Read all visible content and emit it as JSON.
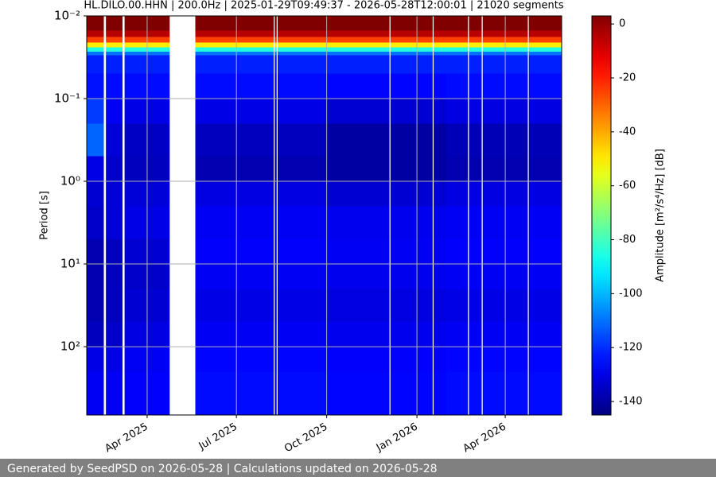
{
  "chart_data": {
    "type": "spectrogram",
    "title": "HL.DILO.00.HHN | 200.0Hz | 2025-01-29T09:49:37 - 2026-05-28T12:00:01 | 21020 segments",
    "y_label": "Period [s]",
    "colorbar_label": "Amplitude [m²/s⁴/Hz] [dB]",
    "footer": "Generated by SeedPSD on 2026-05-28 | Calculations updated on 2026-05-28",
    "xlim": [
      "2025-01-29T09:49:37",
      "2026-05-28T12:00:01"
    ],
    "xticks": [
      {
        "value": "2025-04-01",
        "label": "Apr 2025"
      },
      {
        "value": "2025-07-01",
        "label": "Jul 2025"
      },
      {
        "value": "2025-10-01",
        "label": "Oct 2025"
      },
      {
        "value": "2026-01-01",
        "label": "Jan 2026"
      },
      {
        "value": "2026-04-01",
        "label": "Apr 2026"
      }
    ],
    "ylim": [
      0.01,
      670
    ],
    "y_log": true,
    "y_inverted": true,
    "yticks": [
      {
        "value": 0.01,
        "label": "10⁻²"
      },
      {
        "value": 0.1,
        "label": "10⁻¹"
      },
      {
        "value": 1,
        "label": "10⁰"
      },
      {
        "value": 10,
        "label": "10¹"
      },
      {
        "value": 100,
        "label": "10²"
      }
    ],
    "grid": true,
    "colormap": "jet",
    "clim": [
      -145,
      3
    ],
    "cticks": [
      0,
      -20,
      -40,
      -60,
      -80,
      -100,
      -120,
      -140
    ],
    "period_bins": [
      0.01,
      0.015,
      0.018,
      0.021,
      0.024,
      0.027,
      0.03,
      0.05,
      0.1,
      0.2,
      0.5,
      1,
      2,
      5,
      10,
      20,
      50,
      100,
      200,
      670
    ],
    "columns": [
      {
        "start": "2025-01-29",
        "end": "2025-02-16",
        "values": [
          3,
          -5,
          -25,
          -50,
          -85,
          -110,
          -122,
          -124,
          -118,
          -112,
          -130,
          -133,
          -134,
          -138,
          -138,
          -138,
          -136,
          -130,
          -128
        ]
      },
      {
        "start": "2025-02-18",
        "end": "2025-03-07",
        "values": [
          3,
          -5,
          -25,
          -50,
          -85,
          -110,
          -122,
          -125,
          -128,
          -132,
          -134,
          -132,
          -132,
          -136,
          -136,
          -136,
          -134,
          -130,
          -128
        ]
      },
      {
        "start": "2025-03-09",
        "end": "2025-04-24",
        "values": [
          3,
          -5,
          -25,
          -50,
          -85,
          -110,
          -122,
          -125,
          -130,
          -135,
          -136,
          -132,
          -130,
          -133,
          -134,
          -133,
          -131,
          -128,
          -127
        ]
      },
      {
        "start": "2025-05-20",
        "end": "2025-09-30",
        "values": [
          3,
          -5,
          -25,
          -50,
          -85,
          -110,
          -122,
          -125,
          -130,
          -136,
          -138,
          -131,
          -128,
          -127,
          -128,
          -130,
          -128,
          -126,
          -125
        ]
      },
      {
        "start": "2025-09-30",
        "end": "2026-01-31",
        "values": [
          3,
          -5,
          -25,
          -50,
          -85,
          -110,
          -122,
          -126,
          -133,
          -140,
          -140,
          -133,
          -129,
          -128,
          -129,
          -131,
          -129,
          -127,
          -126
        ]
      },
      {
        "start": "2026-01-31",
        "end": "2026-05-28T12:00:01",
        "values": [
          3,
          -5,
          -25,
          -50,
          -85,
          -110,
          -122,
          -125,
          -131,
          -137,
          -138,
          -131,
          -128,
          -127,
          -128,
          -130,
          -128,
          -126,
          -125
        ]
      }
    ],
    "gaps": [
      [
        "2025-02-16",
        "2025-02-18"
      ],
      [
        "2025-03-07",
        "2025-03-09"
      ],
      [
        "2025-04-24",
        "2025-05-20"
      ],
      [
        "2025-08-08",
        "2025-08-09"
      ],
      [
        "2025-08-11",
        "2025-08-12"
      ],
      [
        "2025-12-04",
        "2025-12-05"
      ],
      [
        "2026-01-17",
        "2026-01-18"
      ],
      [
        "2026-02-22",
        "2026-02-23"
      ],
      [
        "2026-03-08",
        "2026-03-09"
      ],
      [
        "2026-04-24",
        "2026-04-25"
      ]
    ]
  }
}
